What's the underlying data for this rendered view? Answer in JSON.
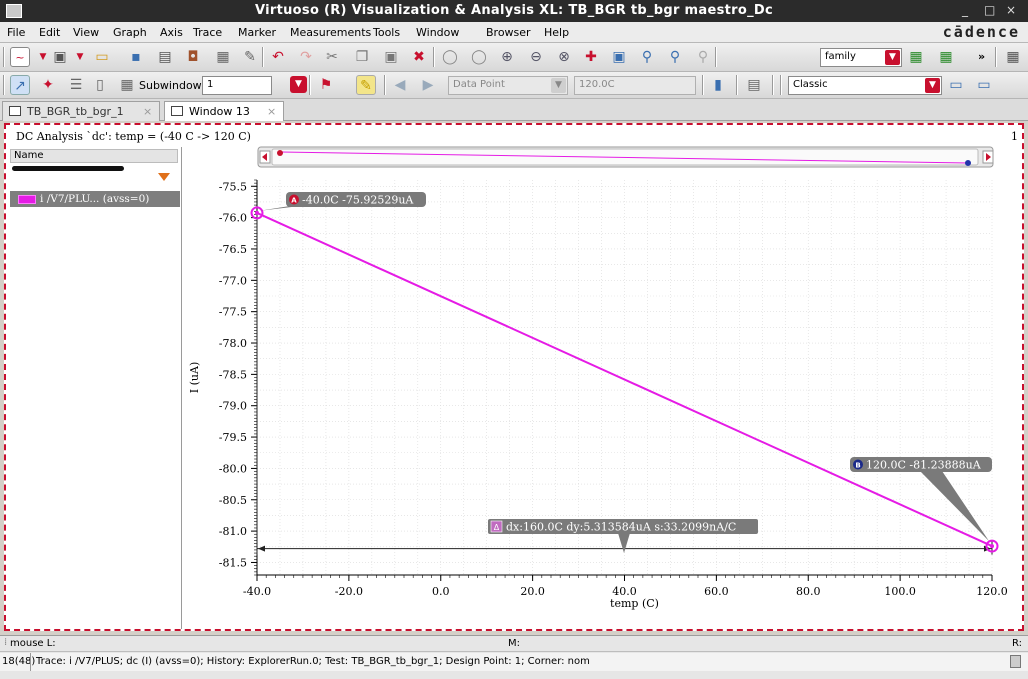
{
  "window": {
    "title": "Virtuoso (R) Visualization & Analysis XL: TB_BGR tb_bgr maestro_Dc",
    "brand": "cādence",
    "min": "_",
    "max": "□",
    "close": "×"
  },
  "menu": [
    "File",
    "Edit",
    "View",
    "Graph",
    "Axis",
    "Trace",
    "Marker",
    "Measurements",
    "Tools",
    "Window",
    "Browser",
    "Help"
  ],
  "toolbar1": {
    "family_combo": "family",
    "more": "»"
  },
  "toolbar2": {
    "subwindow_label": "Subwindow:",
    "subwindow_value": "1",
    "marker_mode": "Data Point",
    "marker_value": "120.0C",
    "graph_style": "Classic"
  },
  "tabs": [
    {
      "label": "TB_BGR_tb_bgr_1",
      "active": false
    },
    {
      "label": "Window 13",
      "active": true
    }
  ],
  "plot": {
    "analysis_title": "DC Analysis `dc': temp = (-40 C -> 120 C)",
    "subwindow_index": "1",
    "legend_header": "Name",
    "legend_entry": "i /V7/PLU... (avss=0)",
    "trace_color": "#e51be5"
  },
  "chart_data": {
    "type": "line",
    "title": "",
    "xlabel": "temp (C)",
    "ylabel": "I (uA)",
    "xlim": [
      -40,
      120
    ],
    "ylim": [
      -81.7,
      -75.4
    ],
    "xticks": [
      -40,
      -20,
      0,
      20,
      40,
      60,
      80,
      100,
      120
    ],
    "xtick_labels": [
      "-40.0",
      "-20.0",
      "0.0",
      "20.0",
      "40.0",
      "60.0",
      "80.0",
      "100.0",
      "120.0"
    ],
    "yticks": [
      -75.5,
      -76.0,
      -76.5,
      -77.0,
      -77.5,
      -78.0,
      -78.5,
      -79.0,
      -79.5,
      -80.0,
      -80.5,
      -81.0,
      -81.5
    ],
    "ytick_labels": [
      "-75.5",
      "-76.0",
      "-76.5",
      "-77.0",
      "-77.5",
      "-78.0",
      "-78.5",
      "-79.0",
      "-79.5",
      "-80.0",
      "-80.5",
      "-81.0",
      "-81.5"
    ],
    "grid": true,
    "series": [
      {
        "name": "i /V7/PLU... (avss=0)",
        "color": "#e51be5",
        "x": [
          -40.0,
          120.0
        ],
        "y": [
          -75.92529,
          -81.23888
        ]
      }
    ],
    "markers": [
      {
        "id": "A",
        "x": -40.0,
        "y": -75.92529,
        "label": "-40.0C -75.92529uA"
      },
      {
        "id": "B",
        "x": 120.0,
        "y": -81.23888,
        "label": "120.0C -81.23888uA"
      }
    ],
    "delta": {
      "id": "Δ",
      "y": -81.28,
      "label": "dx:160.0C dy:5.313584uA s:33.2099nA/C"
    }
  },
  "status": {
    "mouse_label": "mouse L:",
    "middle_label": "M:",
    "right_label": "R:",
    "count": "18(48)",
    "message": "Trace: i /V7/PLUS; dc (I) (avss=0); History: ExplorerRun.0; Test: TB_BGR_tb_bgr_1; Design Point: 1; Corner: nom"
  }
}
